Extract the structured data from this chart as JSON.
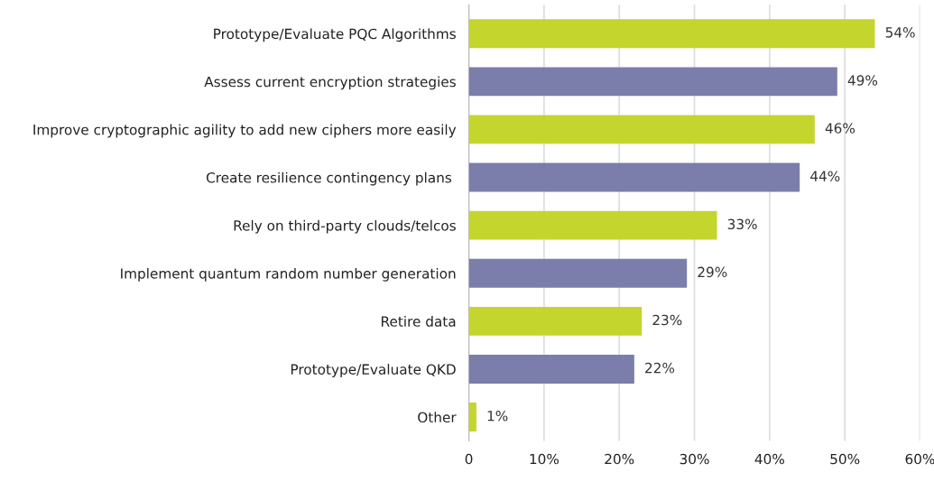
{
  "chart_data": {
    "type": "bar",
    "orientation": "horizontal",
    "categories": [
      "Prototype/Evaluate PQC Algorithms",
      "Assess current encryption strategies",
      "Improve cryptographic agility to add new ciphers more easily",
      "Create resilience contingency plans ",
      "Rely on third-party clouds/telcos",
      "Implement quantum random number generation",
      "Retire data",
      "Prototype/Evaluate QKD",
      "Other"
    ],
    "values": [
      54,
      49,
      46,
      44,
      33,
      29,
      23,
      22,
      1
    ],
    "colors": [
      "#c4d52e",
      "#7b7dab",
      "#c4d52e",
      "#7b7dab",
      "#c4d52e",
      "#7b7dab",
      "#c4d52e",
      "#7b7dab",
      "#c4d52e"
    ],
    "value_labels": [
      "54%",
      "49%",
      "46%",
      "44%",
      "33%",
      "29%",
      "23%",
      "22%",
      "1%"
    ],
    "xlim": [
      0,
      60
    ],
    "xticks": [
      0,
      {
        "value": 10,
        "label": "10%"
      },
      {
        "value": 20,
        "label": "20%"
      },
      {
        "value": 30,
        "label": "30%"
      },
      {
        "value": 40,
        "label": "40%"
      },
      {
        "value": 50,
        "label": "50%"
      },
      {
        "value": 60,
        "label": "60%"
      }
    ],
    "grid": "x"
  }
}
